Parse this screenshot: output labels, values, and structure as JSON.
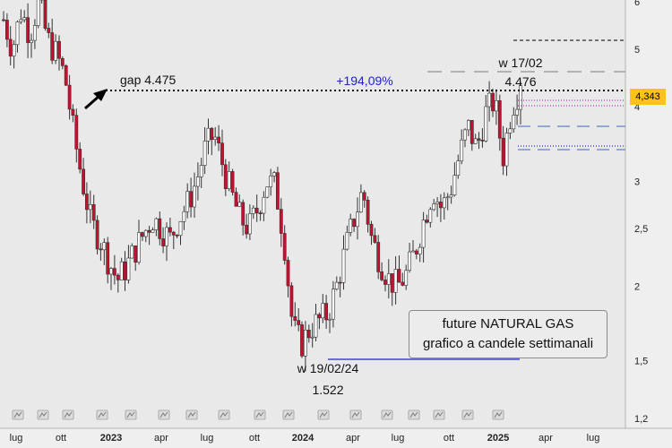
{
  "chart_data": {
    "type": "candlestick",
    "title": "future NATURAL GAS",
    "subtitle": "grafico a candele settimanali",
    "y_axis": {
      "scale": "log",
      "ticks": [
        "1,2",
        "1,5",
        "2",
        "2,5",
        "3",
        "4",
        "5",
        "6"
      ],
      "tick_values": [
        1.2,
        1.5,
        2,
        2.5,
        3,
        4,
        5,
        6
      ],
      "ylim": [
        1.2,
        6.3
      ]
    },
    "x_axis": {
      "ticks": [
        "lug",
        "ott",
        "2023",
        "apr",
        "lug",
        "ott",
        "2024",
        "apr",
        "lug",
        "ott",
        "2025",
        "apr",
        "lug"
      ],
      "bold_ticks": [
        "2023",
        "2024",
        "2025"
      ]
    },
    "last_price": "4,343",
    "annotations": {
      "gap_label": "gap 4.475",
      "gain_label": "+194,09%",
      "high_week": "w 17/02",
      "high_value": "4.476",
      "low_week": "w 19/02/24",
      "low_value": "1.522"
    },
    "levels": {
      "gap": 4.475,
      "low": 1.522,
      "high": 4.476
    },
    "up_color": "#ffffff",
    "down_color": "#c8102e",
    "wick_color": "#333333",
    "gain_color": "#2020d0",
    "price_tag_color": "#ffc21a",
    "close_path": [
      5.6,
      5.0,
      5.8,
      5.3,
      6.0,
      5.2,
      4.9,
      4.5,
      3.6,
      3.0,
      2.55,
      2.4,
      2.2,
      2.05,
      2.15,
      2.3,
      2.45,
      2.6,
      2.5,
      2.4,
      2.6,
      2.75,
      3.0,
      3.4,
      3.6,
      3.2,
      2.85,
      2.6,
      2.5,
      2.7,
      3.0,
      2.95,
      2.4,
      1.7,
      1.6,
      1.7,
      1.75,
      1.8,
      2.0,
      2.3,
      2.6,
      2.9,
      2.4,
      2.2,
      2.05,
      2.0,
      2.1,
      2.3,
      2.6,
      2.9,
      2.7,
      2.9,
      3.3,
      3.7,
      3.4,
      3.9,
      4.1,
      3.3,
      4.0,
      4.343
    ]
  }
}
